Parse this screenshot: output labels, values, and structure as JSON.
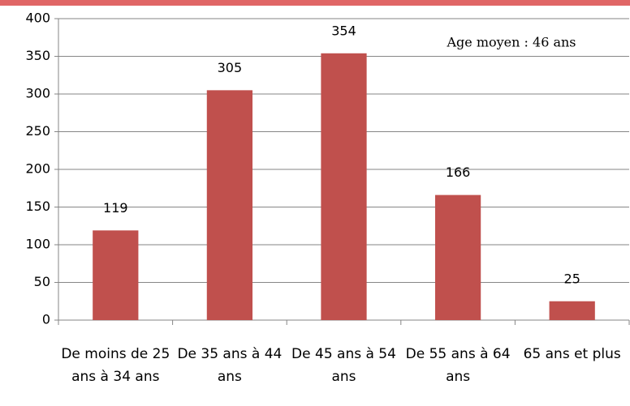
{
  "chart_data": {
    "type": "bar",
    "categories": [
      "De moins de 25 ans à 34 ans",
      "De 35 ans à 44 ans",
      "De 45 ans à 54 ans",
      "De 55 ans à 64 ans",
      "65 ans et plus"
    ],
    "values": [
      119,
      305,
      354,
      166,
      25
    ],
    "color": "#c0504d",
    "ylim": [
      0,
      400
    ],
    "yticks": [
      0,
      50,
      100,
      150,
      200,
      250,
      300,
      350,
      400
    ],
    "grid": true,
    "annotation": "Age moyen : 46 ans"
  }
}
